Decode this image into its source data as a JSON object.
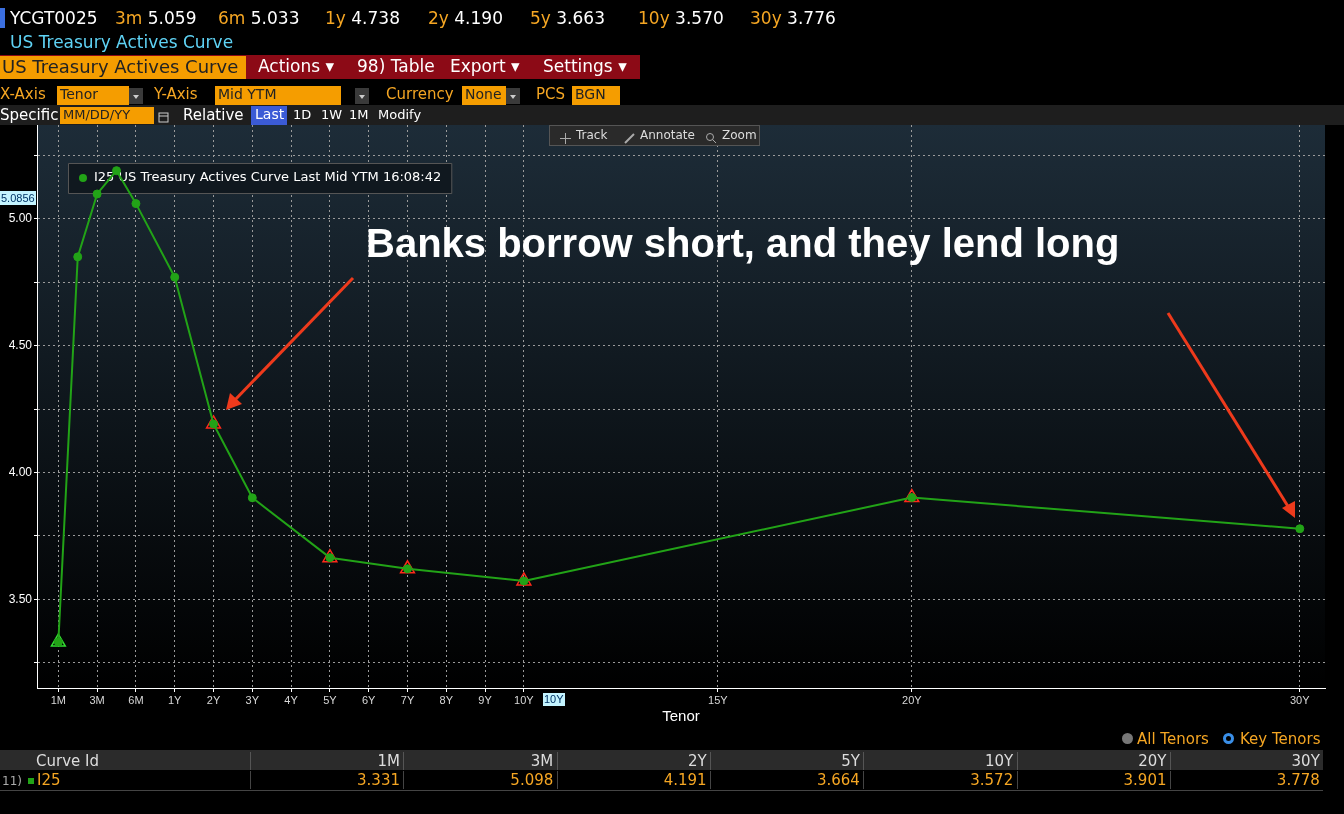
{
  "chart_data": {
    "type": "line",
    "title": "US Treasury Actives Curve",
    "xlabel": "Tenor",
    "legend": "top left",
    "grid": true,
    "marker": "circle",
    "line_style": "solid",
    "categories": [
      "1M",
      null,
      "3M",
      null,
      "6M",
      null,
      "1Y",
      null,
      "2Y",
      null,
      "3Y",
      null,
      "4Y",
      null,
      "5Y",
      null,
      "6Y",
      null,
      "7Y",
      null,
      "8Y",
      null,
      "9Y",
      null,
      "10Y",
      null,
      null,
      null,
      null,
      null,
      null,
      null,
      null,
      null,
      "15Y",
      null,
      null,
      null,
      null,
      null,
      null,
      null,
      null,
      null,
      "20Y",
      null,
      null,
      null,
      null,
      null,
      null,
      null,
      null,
      null,
      null,
      null,
      null,
      null,
      null,
      null,
      null,
      null,
      null,
      null,
      "30Y"
    ],
    "ylim": [
      3.15,
      5.37
    ],
    "yticks": [
      {
        "value": 3.25,
        "label": null
      },
      {
        "value": 3.5,
        "label": "3.50"
      },
      {
        "value": 3.75,
        "label": null
      },
      {
        "value": 4,
        "label": "4.00"
      },
      {
        "value": 4.25,
        "label": null
      },
      {
        "value": 4.5,
        "label": "4.50"
      },
      {
        "value": 4.75,
        "label": null
      },
      {
        "value": 5,
        "label": "5.00"
      },
      {
        "value": 5.25,
        "label": null
      }
    ],
    "series": [
      {
        "name": "I25 US Treasury Actives Curve Last Mid YTM 16:08:42",
        "color": "#22a317",
        "values": [
          3.331,
          4.85,
          5.098,
          5.19,
          5.06,
          null,
          4.77,
          null,
          4.191,
          null,
          3.9,
          null,
          null,
          null,
          3.664,
          null,
          null,
          null,
          3.62,
          null,
          null,
          null,
          null,
          null,
          3.572,
          null,
          null,
          null,
          null,
          null,
          null,
          null,
          null,
          null,
          null,
          null,
          null,
          null,
          null,
          null,
          null,
          null,
          null,
          null,
          3.901,
          null,
          null,
          null,
          null,
          null,
          null,
          null,
          null,
          null,
          null,
          null,
          null,
          null,
          null,
          null,
          null,
          null,
          null,
          null,
          3.778
        ]
      },
      {
        "type": "scatter",
        "color": "#33dd33",
        "marker": "triangle",
        "x": [
          "1M"
        ],
        "values": [
          3.331
        ]
      },
      {
        "type": "scatter",
        "color": "#ff2a1a",
        "marker": "triangle",
        "x": [
          "2Y",
          "5Y",
          "7Y",
          "10Y",
          "20Y"
        ],
        "values": [
          4.191,
          3.664,
          3.62,
          3.572,
          3.901
        ]
      }
    ],
    "annotations": [
      "Banks borrow short, and they lend long",
      "5.0856",
      "10Y",
      "YCGT0025",
      "3m 5.059",
      "6m 5.033",
      "1y 4.738",
      "2y 4.190",
      "5y 3.663",
      "10y 3.570",
      "30y 3.776",
      "US Treasury Actives Curve",
      "Actions ▾",
      "98) Table",
      "Export ▾",
      "Settings ▾",
      "X-Axis",
      "Tenor",
      "Y-Axis",
      "Mid YTM",
      "Currency",
      "None",
      "PCS",
      "BGN",
      "Specific",
      "MM/DD/YY",
      "Relative",
      "Last",
      "1D",
      "1W",
      "1M",
      "Modify",
      "Track",
      "Annotate",
      "Zoom",
      "All Tenors",
      "Key Tenors",
      "Curve Id",
      "11)",
      "I25",
      "1M",
      "3M",
      "2Y",
      "5Y",
      "10Y",
      "20Y",
      "30Y",
      "3.331",
      "5.098",
      "4.191",
      "3.664",
      "3.572",
      "3.901",
      "3.778"
    ]
  }
}
